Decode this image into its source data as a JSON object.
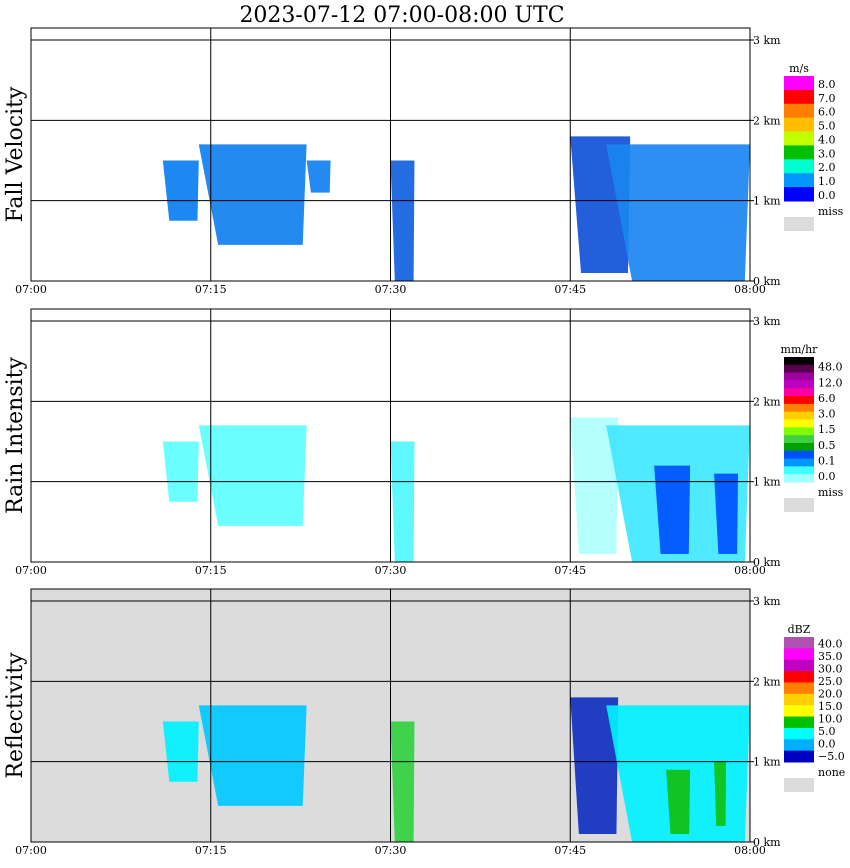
{
  "title": "2023-07-12   07:00-08:00 UTC",
  "chart_data": [
    {
      "type": "heatmap",
      "ylabel": "Fall Velocity",
      "x_ticks": [
        "07:00",
        "07:15",
        "07:30",
        "07:45",
        "08:00"
      ],
      "y_ticks": [
        "0 km",
        "1 km",
        "2 km",
        "3 km"
      ],
      "xlim": [
        "07:00",
        "08:00"
      ],
      "ylim_km": [
        0,
        3
      ],
      "grid": true,
      "background": "#ffffff",
      "legend": {
        "position": "right",
        "unit": "m/s",
        "labels": [
          "8.0",
          "7.0",
          "6.0",
          "5.0",
          "4.0",
          "3.0",
          "2.0",
          "1.0",
          "0.0"
        ],
        "colors": [
          "#ff00ff",
          "#ff0000",
          "#ff7f00",
          "#ffbf00",
          "#bfff00",
          "#00c000",
          "#00ffd0",
          "#0096ff",
          "#0000ff"
        ],
        "missing_label": "miss",
        "missing_color": "#dcdcdc"
      },
      "echo_regions": [
        {
          "t_start": "07:11",
          "t_end": "07:14",
          "h_bottom_km": 0.75,
          "h_top_km": 1.5,
          "dominant": "2.0",
          "color": "#0a7ef0"
        },
        {
          "t_start": "07:14",
          "t_end": "07:23",
          "h_bottom_km": 0.45,
          "h_top_km": 1.7,
          "dominant": "2.0",
          "color": "#1080f0"
        },
        {
          "t_start": "07:23",
          "t_end": "07:25",
          "h_bottom_km": 1.1,
          "h_top_km": 1.5,
          "dominant": "2.0",
          "color": "#1080f0"
        },
        {
          "t_start": "07:30",
          "t_end": "07:32",
          "h_bottom_km": 0.0,
          "h_top_km": 1.5,
          "dominant": "1.0",
          "color": "#1060e0"
        },
        {
          "t_start": "07:45",
          "t_end": "07:50",
          "h_bottom_km": 0.1,
          "h_top_km": 1.8,
          "dominant": "1.0",
          "color": "#1050d8"
        },
        {
          "t_start": "07:48",
          "t_end": "08:00",
          "h_bottom_km": 0.0,
          "h_top_km": 1.7,
          "dominant": "2.0",
          "color": "#1a86f0"
        }
      ]
    },
    {
      "type": "heatmap",
      "ylabel": "Rain Intensity",
      "x_ticks": [
        "07:00",
        "07:15",
        "07:30",
        "07:45",
        "08:00"
      ],
      "y_ticks": [
        "0 km",
        "1 km",
        "2 km",
        "3 km"
      ],
      "xlim": [
        "07:00",
        "08:00"
      ],
      "ylim_km": [
        0,
        3
      ],
      "grid": true,
      "background": "#ffffff",
      "legend": {
        "position": "right",
        "unit": "mm/hr",
        "labels": [
          "48.0",
          "12.0",
          "6.0",
          "3.0",
          "1.5",
          "0.5",
          "0.1",
          "0.0"
        ],
        "colors": [
          "#000000",
          "#5a0050",
          "#a000a0",
          "#c000c0",
          "#ff00a0",
          "#ff0000",
          "#ff8000",
          "#ffd000",
          "#ffff00",
          "#80ff00",
          "#40d040",
          "#00a000",
          "#0050ff",
          "#0096ff",
          "#40ffff",
          "#a0ffff"
        ],
        "missing_label": "miss",
        "missing_color": "#dcdcdc"
      },
      "echo_regions": [
        {
          "t_start": "07:11",
          "t_end": "07:14",
          "h_bottom_km": 0.75,
          "h_top_km": 1.5,
          "dominant": "0.1",
          "color": "#60ffff"
        },
        {
          "t_start": "07:14",
          "t_end": "07:23",
          "h_bottom_km": 0.45,
          "h_top_km": 1.7,
          "dominant": "0.1",
          "color": "#60ffff"
        },
        {
          "t_start": "07:30",
          "t_end": "07:32",
          "h_bottom_km": 0.0,
          "h_top_km": 1.5,
          "dominant": "0.1",
          "color": "#50f8ff"
        },
        {
          "t_start": "07:45",
          "t_end": "07:49",
          "h_bottom_km": 0.1,
          "h_top_km": 1.8,
          "dominant": "0.0",
          "color": "#b0ffff"
        },
        {
          "t_start": "07:48",
          "t_end": "08:00",
          "h_bottom_km": 0.0,
          "h_top_km": 1.7,
          "dominant": "0.1",
          "color": "#40e8ff"
        },
        {
          "t_start": "07:52",
          "t_end": "07:55",
          "h_bottom_km": 0.1,
          "h_top_km": 1.2,
          "dominant": "0.5",
          "color": "#0050ff"
        },
        {
          "t_start": "07:57",
          "t_end": "07:59",
          "h_bottom_km": 0.1,
          "h_top_km": 1.1,
          "dominant": "0.5",
          "color": "#0050ff"
        }
      ]
    },
    {
      "type": "heatmap",
      "ylabel": "Reflectivity",
      "x_ticks": [
        "07:00",
        "07:15",
        "07:30",
        "07:45",
        "08:00"
      ],
      "y_ticks": [
        "0 km",
        "1 km",
        "2 km",
        "3 km"
      ],
      "xlim": [
        "07:00",
        "08:00"
      ],
      "ylim_km": [
        0,
        3
      ],
      "grid": true,
      "background": "#dcdcdc",
      "legend": {
        "position": "right",
        "unit": "dBZ",
        "labels": [
          "40.0",
          "35.0",
          "30.0",
          "25.0",
          "20.0",
          "15.0",
          "10.0",
          "5.0",
          "0.0",
          "−5.0"
        ],
        "colors": [
          "#b050b0",
          "#ff00ff",
          "#c000c0",
          "#ff0000",
          "#ff8000",
          "#ffd000",
          "#ffff00",
          "#00c000",
          "#00ffff",
          "#00b0ff",
          "#0000c0"
        ],
        "missing_label": "none",
        "missing_color": "#dcdcdc"
      },
      "echo_regions": [
        {
          "t_start": "07:11",
          "t_end": "07:14",
          "h_bottom_km": 0.75,
          "h_top_km": 1.5,
          "dominant": "10.0",
          "color": "#00f0ff"
        },
        {
          "t_start": "07:14",
          "t_end": "07:23",
          "h_bottom_km": 0.45,
          "h_top_km": 1.7,
          "dominant": "5.0",
          "color": "#00c8ff"
        },
        {
          "t_start": "07:30",
          "t_end": "07:32",
          "h_bottom_km": 0.0,
          "h_top_km": 1.5,
          "dominant": "15.0",
          "color": "#30d040"
        },
        {
          "t_start": "07:45",
          "t_end": "07:49",
          "h_bottom_km": 0.1,
          "h_top_km": 1.8,
          "dominant": "−5.0",
          "color": "#1030c0"
        },
        {
          "t_start": "07:48",
          "t_end": "08:00",
          "h_bottom_km": 0.0,
          "h_top_km": 1.7,
          "dominant": "10.0",
          "color": "#00f0ff"
        },
        {
          "t_start": "07:53",
          "t_end": "07:55",
          "h_bottom_km": 0.1,
          "h_top_km": 0.9,
          "dominant": "15.0",
          "color": "#10c010"
        },
        {
          "t_start": "07:57",
          "t_end": "07:58",
          "h_bottom_km": 0.2,
          "h_top_km": 1.0,
          "dominant": "15.0",
          "color": "#10c010"
        }
      ]
    }
  ]
}
